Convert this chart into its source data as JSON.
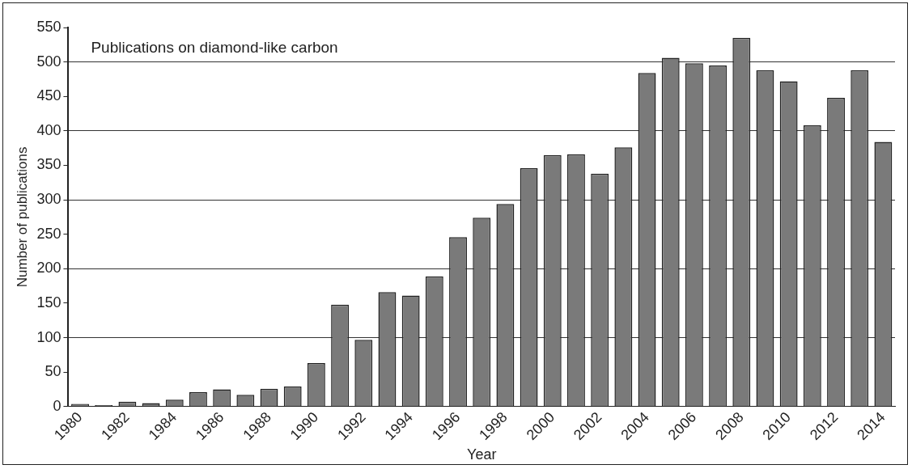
{
  "chart_data": {
    "type": "bar",
    "title": "Publications on diamond-like carbon",
    "xlabel": "Year",
    "ylabel": "Number of publications",
    "categories": [
      "1980",
      null,
      "1982",
      null,
      "1984",
      null,
      "1986",
      null,
      "1988",
      null,
      "1990",
      null,
      "1992",
      null,
      "1994",
      null,
      "1996",
      null,
      "1998",
      null,
      "2000",
      null,
      "2002",
      null,
      "2004",
      null,
      "2006",
      null,
      "2008",
      null,
      "2010",
      null,
      "2012",
      null,
      "2014"
    ],
    "values": [
      4,
      2,
      7,
      5,
      10,
      21,
      25,
      17,
      26,
      29,
      63,
      148,
      97,
      166,
      161,
      189,
      246,
      274,
      294,
      346,
      365,
      366,
      338,
      376,
      484,
      506,
      498,
      495,
      535,
      488,
      472,
      408,
      448,
      488,
      384
    ],
    "color": "#7a7a7a",
    "ylim": [
      0,
      550
    ],
    "yticks": [
      0,
      50,
      100,
      150,
      200,
      250,
      300,
      350,
      400,
      450,
      500,
      550
    ],
    "grid": "y"
  }
}
